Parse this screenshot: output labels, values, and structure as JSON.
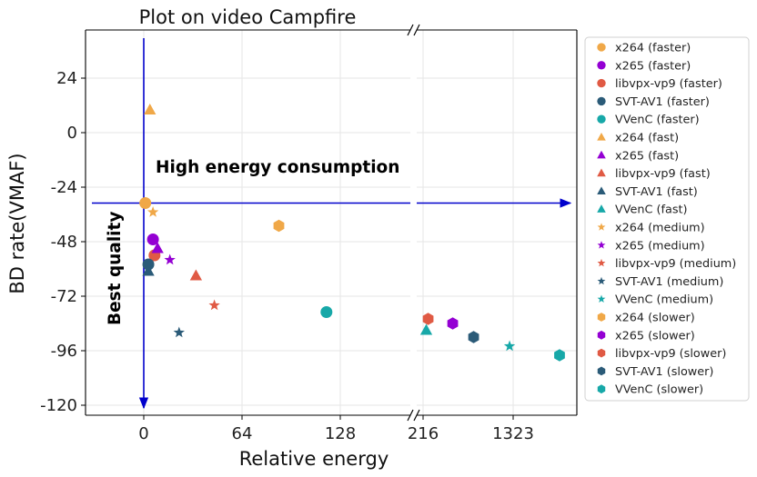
{
  "chart_data": {
    "type": "scatter",
    "title": "Plot on video Campfire",
    "xlabel": "Relative energy",
    "ylabel": "BD rate(VMAF)",
    "ylim": [
      -120,
      40
    ],
    "yticks": [
      24,
      0,
      -24,
      -48,
      -72,
      -96,
      -120
    ],
    "ytick_labels": [
      "24",
      "0",
      "-24",
      "-48",
      "-72",
      "-96",
      "-120"
    ],
    "x_broken_axis": true,
    "x_left_panel": {
      "xlim": [
        -30,
        220
      ],
      "ticks": [
        0,
        64,
        128
      ],
      "tick_labels": [
        "0",
        "64",
        "128"
      ]
    },
    "x_right_panel": {
      "tick_labels": [
        "216",
        "1323"
      ]
    },
    "grid": true,
    "legend_position": "outside-right",
    "annotations": {
      "high_energy": "High energy consumption",
      "best_quality": "Best quality"
    },
    "reference_lines": {
      "x": 0,
      "y": -31
    },
    "series": [
      {
        "name": "x264 (faster)",
        "color": "#f0a848",
        "marker": "circle",
        "points": [
          {
            "panel": "left",
            "x": 1,
            "y": -31
          }
        ]
      },
      {
        "name": "x265 (faster)",
        "color": "#9400d3",
        "marker": "circle",
        "points": [
          {
            "panel": "left",
            "x": 6,
            "y": -47
          }
        ]
      },
      {
        "name": "libvpx-vp9 (faster)",
        "color": "#e05a44",
        "marker": "circle",
        "points": [
          {
            "panel": "left",
            "x": 7,
            "y": -54
          }
        ]
      },
      {
        "name": "SVT-AV1 (faster)",
        "color": "#2b5b78",
        "marker": "circle",
        "points": [
          {
            "panel": "left",
            "x": 3,
            "y": -58
          }
        ]
      },
      {
        "name": "VVenC (faster)",
        "color": "#17a8a8",
        "marker": "circle",
        "points": [
          {
            "panel": "left",
            "x": 119,
            "y": -79
          }
        ]
      },
      {
        "name": "x264 (fast)",
        "color": "#f0a848",
        "marker": "triangle",
        "points": [
          {
            "panel": "left",
            "x": 4,
            "y": 10
          }
        ]
      },
      {
        "name": "x265 (fast)",
        "color": "#9400d3",
        "marker": "triangle",
        "points": [
          {
            "panel": "left",
            "x": 9,
            "y": -51
          }
        ]
      },
      {
        "name": "libvpx-vp9 (fast)",
        "color": "#e05a44",
        "marker": "triangle",
        "points": [
          {
            "panel": "left",
            "x": 34,
            "y": -63
          }
        ]
      },
      {
        "name": "SVT-AV1 (fast)",
        "color": "#2b5b78",
        "marker": "triangle",
        "points": [
          {
            "panel": "left",
            "x": 3,
            "y": -61
          }
        ]
      },
      {
        "name": "VVenC (fast)",
        "color": "#17a8a8",
        "marker": "triangle",
        "points": [
          {
            "panel": "left",
            "x": 184,
            "y": -87
          }
        ]
      },
      {
        "name": "x264 (medium)",
        "color": "#f0a848",
        "marker": "star",
        "points": [
          {
            "panel": "left",
            "x": 6,
            "y": -35
          }
        ]
      },
      {
        "name": "x265 (medium)",
        "color": "#9400d3",
        "marker": "star",
        "points": [
          {
            "panel": "left",
            "x": 17,
            "y": -56
          }
        ]
      },
      {
        "name": "libvpx-vp9 (medium)",
        "color": "#e05a44",
        "marker": "star",
        "points": [
          {
            "panel": "left",
            "x": 46,
            "y": -76
          }
        ]
      },
      {
        "name": "SVT-AV1 (medium)",
        "color": "#2b5b78",
        "marker": "star",
        "points": [
          {
            "panel": "left",
            "x": 23,
            "y": -88
          }
        ]
      },
      {
        "name": "VVenC (medium)",
        "color": "#17a8a8",
        "marker": "star",
        "points": [
          {
            "panel": "right",
            "x": 1279,
            "y": -94
          }
        ]
      },
      {
        "name": "x264 (slower)",
        "color": "#f0a848",
        "marker": "hexagon",
        "points": [
          {
            "panel": "left",
            "x": 88,
            "y": -41
          }
        ]
      },
      {
        "name": "x265 (slower)",
        "color": "#9400d3",
        "marker": "hexagon",
        "points": [
          {
            "panel": "right",
            "x": 580,
            "y": -84
          }
        ]
      },
      {
        "name": "libvpx-vp9 (slower)",
        "color": "#e05a44",
        "marker": "hexagon",
        "points": [
          {
            "panel": "right",
            "x": 278,
            "y": -82
          }
        ]
      },
      {
        "name": "SVT-AV1 (slower)",
        "color": "#2b5b78",
        "marker": "hexagon",
        "points": [
          {
            "panel": "right",
            "x": 837,
            "y": -90
          }
        ]
      },
      {
        "name": "VVenC (slower)",
        "color": "#17a8a8",
        "marker": "hexagon",
        "points": [
          {
            "panel": "right",
            "x": 1710,
            "y": -98
          }
        ]
      }
    ]
  }
}
